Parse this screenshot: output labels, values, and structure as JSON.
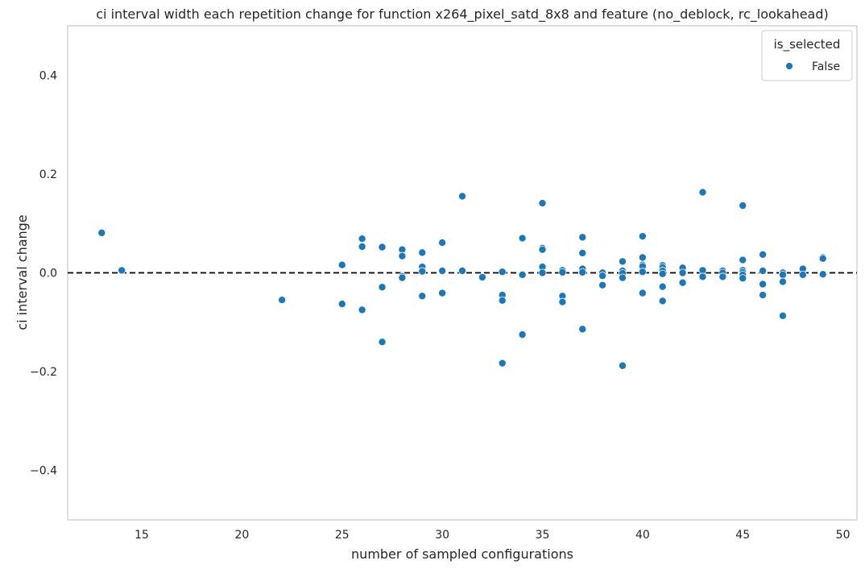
{
  "chart_data": {
    "type": "scatter",
    "title": "ci interval width each repetition change for function x264_pixel_satd_8x8 and feature (no_deblock, rc_lookahead)",
    "xlabel": "number of sampled configurations",
    "ylabel": "ci interval change",
    "xlim": [
      11.3,
      50.7
    ],
    "ylim": [
      -0.5,
      0.5
    ],
    "xticks": [
      15,
      20,
      25,
      30,
      35,
      40,
      45,
      50
    ],
    "yticks": [
      -0.4,
      -0.2,
      0.0,
      0.2,
      0.4
    ],
    "ytick_labels": [
      "−0.4",
      "−0.2",
      "0.0",
      "0.2",
      "0.4"
    ],
    "grid": false,
    "reference_line": {
      "y": 0,
      "style": "dashed",
      "color": "#000000"
    },
    "legend": {
      "title": "is_selected",
      "placement": "top-right",
      "entries": [
        {
          "label": "False",
          "color": "#1f77b4"
        }
      ]
    },
    "series": [
      {
        "name": "False",
        "color": "#1f77b4",
        "points": [
          [
            13,
            0.081
          ],
          [
            14,
            0.005
          ],
          [
            22,
            -0.055
          ],
          [
            25,
            0.016
          ],
          [
            25,
            -0.063
          ],
          [
            26,
            0.069
          ],
          [
            26,
            0.053
          ],
          [
            26,
            -0.075
          ],
          [
            27,
            0.052
          ],
          [
            27,
            -0.029
          ],
          [
            27,
            -0.14
          ],
          [
            28,
            0.047
          ],
          [
            28,
            0.034
          ],
          [
            28,
            -0.007
          ],
          [
            28,
            -0.01
          ],
          [
            29,
            0.041
          ],
          [
            29,
            0.012
          ],
          [
            29,
            0.003
          ],
          [
            29,
            -0.047
          ],
          [
            30,
            0.061
          ],
          [
            30,
            0.004
          ],
          [
            30,
            -0.041
          ],
          [
            31,
            0.155
          ],
          [
            31,
            0.004
          ],
          [
            32,
            -0.009
          ],
          [
            33,
            0.002
          ],
          [
            33,
            -0.045
          ],
          [
            33,
            -0.056
          ],
          [
            33,
            -0.183
          ],
          [
            34,
            0.07
          ],
          [
            34,
            -0.004
          ],
          [
            34,
            -0.125
          ],
          [
            35,
            0.141
          ],
          [
            35,
            0.05
          ],
          [
            35,
            0.047
          ],
          [
            35,
            0.012
          ],
          [
            35,
            0.0
          ],
          [
            36,
            0.005
          ],
          [
            36,
            0.001
          ],
          [
            36,
            -0.047
          ],
          [
            36,
            -0.059
          ],
          [
            37,
            0.072
          ],
          [
            37,
            0.04
          ],
          [
            37,
            0.008
          ],
          [
            37,
            0.001
          ],
          [
            37,
            -0.114
          ],
          [
            38,
            0.0
          ],
          [
            38,
            -0.006
          ],
          [
            38,
            -0.025
          ],
          [
            39,
            0.023
          ],
          [
            39,
            0.004
          ],
          [
            39,
            -0.001
          ],
          [
            39,
            -0.01
          ],
          [
            39,
            -0.188
          ],
          [
            40,
            0.074
          ],
          [
            40,
            0.031
          ],
          [
            40,
            0.016
          ],
          [
            40,
            0.013
          ],
          [
            40,
            0.002
          ],
          [
            40,
            -0.041
          ],
          [
            41,
            0.015
          ],
          [
            41,
            0.011
          ],
          [
            41,
            0.004
          ],
          [
            41,
            -0.002
          ],
          [
            41,
            -0.028
          ],
          [
            41,
            -0.057
          ],
          [
            42,
            0.01
          ],
          [
            42,
            0.0
          ],
          [
            42,
            -0.02
          ],
          [
            43,
            0.163
          ],
          [
            43,
            0.005
          ],
          [
            43,
            -0.008
          ],
          [
            44,
            0.004
          ],
          [
            44,
            0.0
          ],
          [
            44,
            -0.008
          ],
          [
            45,
            0.136
          ],
          [
            45,
            0.026
          ],
          [
            45,
            0.005
          ],
          [
            45,
            0.001
          ],
          [
            45,
            -0.004
          ],
          [
            45,
            -0.011
          ],
          [
            46,
            0.037
          ],
          [
            46,
            0.004
          ],
          [
            46,
            -0.023
          ],
          [
            46,
            -0.045
          ],
          [
            47,
            0.0
          ],
          [
            47,
            -0.004
          ],
          [
            47,
            -0.018
          ],
          [
            47,
            -0.087
          ],
          [
            48,
            0.008
          ],
          [
            48,
            -0.004
          ],
          [
            49,
            0.031
          ],
          [
            49,
            0.029
          ],
          [
            49,
            -0.003
          ]
        ]
      }
    ]
  }
}
